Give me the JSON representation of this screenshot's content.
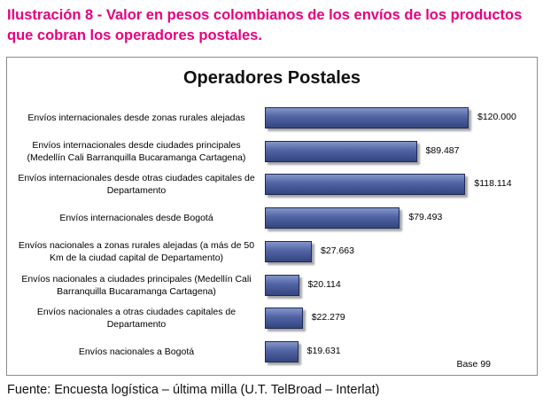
{
  "caption": {
    "line1": "Ilustración 8 - Valor en pesos colombianos de los envíos de los productos",
    "line2": "que cobran los operadores postales."
  },
  "chart_data": {
    "type": "bar",
    "orientation": "horizontal",
    "title": "Operadores Postales",
    "categories": [
      [
        "Envíos internacionales desde zonas rurales alejadas"
      ],
      [
        "Envíos internacionales desde ciudades principales",
        "(Medellín Cali Barranquilla Bucaramanga Cartagena)"
      ],
      [
        "Envíos internacionales desde otras ciudades capitales de",
        "Departamento"
      ],
      [
        "Envíos internacionales desde Bogotá"
      ],
      [
        "Envíos nacionales a zonas rurales alejadas (a más de 50",
        "Km de la ciudad capital de Departamento)"
      ],
      [
        "Envíos nacionales a ciudades principales (Medellín Cali",
        "Barranquilla Bucaramanga Cartagena)"
      ],
      [
        "Envíos nacionales a otras ciudades capitales de",
        "Departamento"
      ],
      [
        "Envíos nacionales a Bogotá"
      ]
    ],
    "values": [
      120000,
      89487,
      118114,
      79493,
      27663,
      20114,
      22279,
      19631
    ],
    "value_labels": [
      "$120.000",
      "$89.487",
      "$118.114",
      "$79.493",
      "$27.663",
      "$20.114",
      "$22.279",
      "$19.631"
    ],
    "xlim": [
      0,
      120000
    ],
    "grid": false,
    "bar_color": "#4A5C9C",
    "note": "Base 99"
  },
  "source": "Fuente: Encuesta logística – última milla (U.T. TelBroad – Interlat)"
}
